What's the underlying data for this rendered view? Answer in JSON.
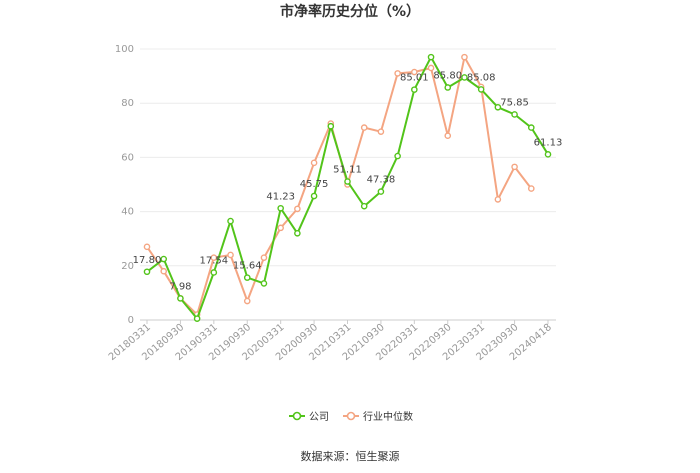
{
  "chart_data": {
    "type": "line",
    "title": "市净率历史分位（%）",
    "source": "数据来源：恒生聚源",
    "ylim": [
      0,
      100
    ],
    "yticks": [
      0,
      20,
      40,
      60,
      80,
      100
    ],
    "xtick_labels": [
      "20180331",
      "20180930",
      "20190331",
      "20190930",
      "20200331",
      "20200930",
      "20210331",
      "20210930",
      "20220331",
      "20220930",
      "20230331",
      "20230930",
      "20240418"
    ],
    "legend_position": "bottom",
    "grid": true,
    "series": [
      {
        "name": "公司",
        "color": "#52c41a",
        "values": [
          17.8,
          22.5,
          7.98,
          0.5,
          17.54,
          36.5,
          15.64,
          13.5,
          41.23,
          32.0,
          45.75,
          71.5,
          51.11,
          42.0,
          47.38,
          60.5,
          85.01,
          97.0,
          85.8,
          89.5,
          85.08,
          78.5,
          75.85,
          71.0,
          61.13
        ]
      },
      {
        "name": "行业中位数",
        "color": "#f4a582",
        "values": [
          27.0,
          18.0,
          8.0,
          2.0,
          23.0,
          24.0,
          7.0,
          23.0,
          34.0,
          41.0,
          58.0,
          72.5,
          50.0,
          71.0,
          69.5,
          91.0,
          91.5,
          93.0,
          68.0,
          97.0,
          86.0,
          44.5,
          56.5,
          48.5,
          null
        ]
      }
    ],
    "data_labels": [
      {
        "index": 0,
        "text": "17.80"
      },
      {
        "index": 2,
        "text": "7.98"
      },
      {
        "index": 4,
        "text": "17.54"
      },
      {
        "index": 6,
        "text": "15.64"
      },
      {
        "index": 8,
        "text": "41.23"
      },
      {
        "index": 10,
        "text": "45.75"
      },
      {
        "index": 12,
        "text": "51.11"
      },
      {
        "index": 14,
        "text": "47.38"
      },
      {
        "index": 16,
        "text": "85.01"
      },
      {
        "index": 18,
        "text": "85.80"
      },
      {
        "index": 20,
        "text": "85.08"
      },
      {
        "index": 22,
        "text": "75.85"
      },
      {
        "index": 24,
        "text": "61.13"
      }
    ]
  }
}
